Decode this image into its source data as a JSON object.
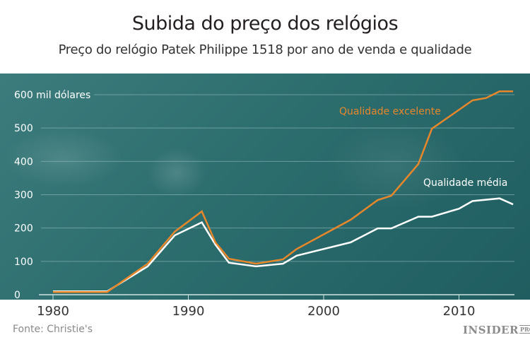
{
  "header": {
    "title": "Subida do preço dos relógios",
    "subtitle": "Preço do relógio Patek Philippe 1518 por ano de venda e qualidade"
  },
  "footer": {
    "source": "Fonte: Christie's",
    "logo_main": "INSIDER",
    "logo_sub": "PRO"
  },
  "colors": {
    "background": "#2c6d6e",
    "excelente": "#e8872a",
    "media": "#ffffff",
    "grid": "#9cc3c2"
  },
  "chart_data": {
    "type": "line",
    "title": "Subida do preço dos relógios",
    "subtitle": "Preço do relógio Patek Philippe 1518 por ano de venda e qualidade",
    "xlabel": "",
    "ylabel": "mil dólares",
    "xlim": [
      1980,
      2014
    ],
    "ylim": [
      0,
      600
    ],
    "x_ticks": [
      1980,
      1990,
      2000,
      2010
    ],
    "y_ticks": [
      0,
      100,
      200,
      300,
      400,
      500,
      600
    ],
    "y_tick_labels": [
      "0",
      "100",
      "200",
      "300",
      "400",
      "500",
      "600 mil dólares"
    ],
    "grid": true,
    "legend_position": "inline labels",
    "series": [
      {
        "name": "Qualidade excelente",
        "color": "#e8872a",
        "x": [
          1980,
          1984,
          1987,
          1989,
          1991,
          1992,
          1993,
          1995,
          1997,
          1998,
          2002,
          2004,
          2005,
          2007,
          2008,
          2011,
          2012,
          2013,
          2014
        ],
        "values": [
          8,
          8,
          93,
          189,
          250,
          157,
          108,
          93,
          106,
          137,
          225,
          284,
          297,
          392,
          498,
          583,
          590,
          610,
          610
        ]
      },
      {
        "name": "Qualidade média",
        "color": "#ffffff",
        "x": [
          1980,
          1984,
          1987,
          1989,
          1991,
          1992,
          1993,
          1995,
          1997,
          1998,
          2002,
          2004,
          2005,
          2007,
          2008,
          2010,
          2011,
          2013,
          2014
        ],
        "values": [
          10,
          10,
          85,
          178,
          217,
          150,
          96,
          85,
          93,
          117,
          157,
          199,
          199,
          234,
          234,
          258,
          281,
          289,
          271
        ]
      }
    ],
    "source": "Fonte: Christie's"
  }
}
